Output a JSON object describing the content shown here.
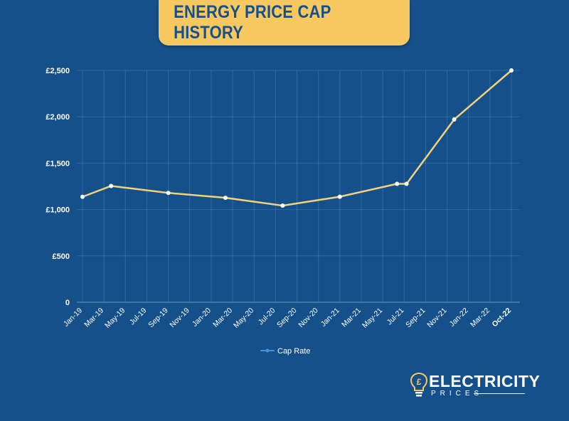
{
  "title": "ENERGY PRICE CAP HISTORY",
  "chart_data": {
    "type": "line",
    "title": "ENERGY PRICE CAP HISTORY",
    "xlabel": "",
    "ylabel": "",
    "x_tick_labels": [
      "Jan-19",
      "Mar-19",
      "May-19",
      "Jul-19",
      "Sep-19",
      "Nov-19",
      "Jan-20",
      "Mar-20",
      "May-20",
      "Jul-20",
      "Sep-20",
      "Nov-20",
      "Jan-21",
      "Mar-21",
      "May-21",
      "Jul-21",
      "Sep-21",
      "Nov-21",
      "Jan-22",
      "Mar-22",
      "Oct-22"
    ],
    "y_tick_labels": [
      "0",
      "£500",
      "£1,000",
      "£1,500",
      "£2,000",
      "£2,500"
    ],
    "y_ticks": [
      0,
      500,
      1000,
      1500,
      2000,
      2500
    ],
    "ylim": [
      0,
      2500
    ],
    "x_range_months": [
      "2019-01",
      "2022-10"
    ],
    "grid": true,
    "legend_position": "bottom",
    "series": [
      {
        "name": "Cap Rate",
        "color": "#f3d27a",
        "points": [
          {
            "x": "2019-01",
            "y": 1137
          },
          {
            "x": "2019-04",
            "y": 1254
          },
          {
            "x": "2019-10",
            "y": 1179
          },
          {
            "x": "2020-04",
            "y": 1126
          },
          {
            "x": "2020-10",
            "y": 1042
          },
          {
            "x": "2021-04",
            "y": 1138
          },
          {
            "x": "2021-10",
            "y": 1277
          },
          {
            "x": "2021-11",
            "y": 1277
          },
          {
            "x": "2022-04",
            "y": 1971
          },
          {
            "x": "2022-10",
            "y": 2500
          }
        ]
      }
    ]
  },
  "brand": {
    "name_line1": "ELECTRICITY",
    "name_line2": "PRICES",
    "bulb_symbol": "£"
  },
  "colors": {
    "background": "#15508b",
    "title_box": "#f8c860",
    "line": "#f3d27a",
    "marker": "#ffffff",
    "legend_marker": "#4a90d9"
  }
}
